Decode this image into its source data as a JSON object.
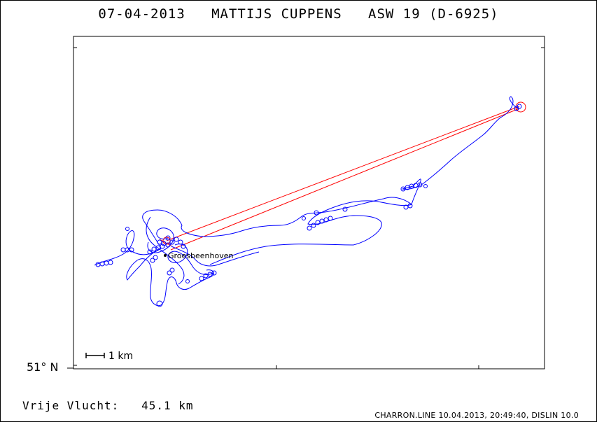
{
  "title": "07-04-2013   MATTIJS CUPPENS   ASW 19 (D-6925)",
  "latitude_label": "51° N",
  "scale_bar": {
    "label": "1 km"
  },
  "place": {
    "name": "Groesbeenhoven"
  },
  "distance_line": "Vrije Vlucht:   45.1 km",
  "footer": "CHARRON.LINE 10.04.2013, 20:49:40, DISLIN 10.0",
  "colors": {
    "track": "#0000ff",
    "task_lines": "#ff0000",
    "frame": "#000000",
    "background": "#ffffff"
  }
}
